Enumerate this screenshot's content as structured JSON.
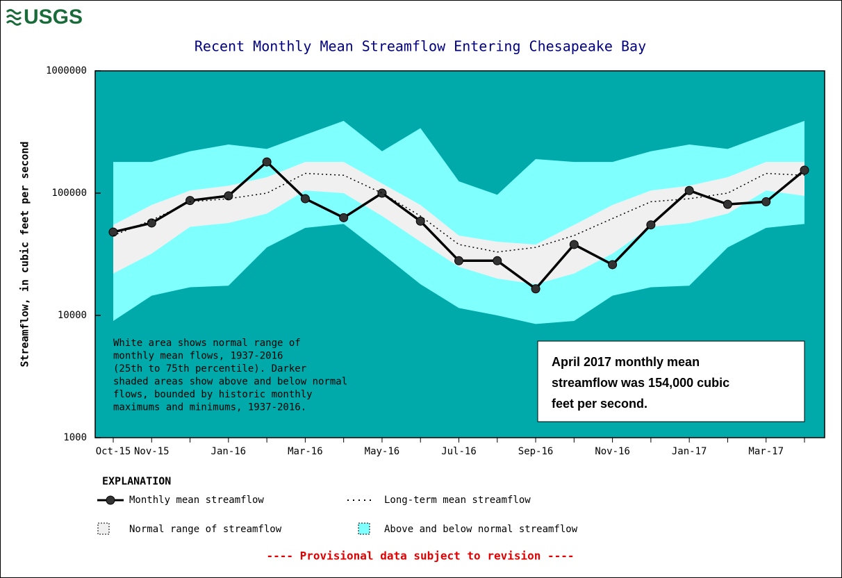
{
  "chart_data": {
    "type": "line",
    "logo": "USGS",
    "title": "Recent Monthly Mean Streamflow Entering Chesapeake Bay",
    "ylabel": "Streamflow, in cubic feet per second",
    "categories": [
      "Oct-15",
      "Nov-15",
      null,
      "Jan-16",
      null,
      "Mar-16",
      null,
      "May-16",
      null,
      "Jul-16",
      null,
      "Sep-16",
      null,
      "Nov-16",
      null,
      "Jan-17",
      null,
      "Mar-17",
      null
    ],
    "ylim": [
      1000,
      1000000
    ],
    "yticks": [
      1000,
      10000,
      100000,
      1000000
    ],
    "log_scale": true,
    "background": "#00aaaa",
    "series": [
      {
        "name": "Monthly mean streamflow",
        "color": "#000000",
        "style": "solid-markers",
        "values": [
          48000,
          57000,
          87000,
          95000,
          180000,
          90000,
          63000,
          100000,
          59000,
          28000,
          28000,
          16500,
          38000,
          26000,
          55000,
          105000,
          81000,
          85000,
          154000
        ]
      },
      {
        "name": "Long-term mean streamflow",
        "color": "#000000",
        "style": "dotted",
        "values": [
          45000,
          60000,
          85000,
          90000,
          100000,
          145000,
          140000,
          100000,
          65000,
          38000,
          33000,
          36000,
          45000,
          62000,
          85000,
          90000,
          100000,
          145000,
          140000
        ]
      }
    ],
    "bands": [
      {
        "name": "Above and below normal streamflow",
        "color": "#80ffff",
        "upper": [
          180000,
          180000,
          220000,
          250000,
          230000,
          300000,
          390000,
          220000,
          340000,
          125000,
          97000,
          190000,
          180000,
          180000,
          220000,
          250000,
          230000,
          300000,
          390000
        ],
        "lower": [
          9000,
          14500,
          17000,
          17500,
          36000,
          52000,
          56000,
          32000,
          18000,
          11500,
          10000,
          8500,
          9000,
          14500,
          17000,
          17500,
          36000,
          52000,
          56000
        ]
      },
      {
        "name": "Normal range of streamflow",
        "color": "#f0f0f0",
        "upper": [
          55000,
          80000,
          105000,
          115000,
          135000,
          180000,
          180000,
          120000,
          80000,
          45000,
          40000,
          38000,
          55000,
          80000,
          105000,
          115000,
          135000,
          180000,
          180000
        ],
        "lower": [
          22000,
          32000,
          53000,
          57000,
          68000,
          105000,
          100000,
          65000,
          40000,
          25000,
          20000,
          18000,
          22000,
          32000,
          53000,
          57000,
          68000,
          105000,
          95000
        ]
      }
    ],
    "note": [
      "White area shows normal range of",
      "monthly mean flows, 1937-2016",
      "(25th to 75th percentile).  Darker",
      "shaded areas show above and below normal",
      "flows, bounded by historic monthly",
      "maximums and minimums, 1937-2016."
    ],
    "callout": [
      "April 2017 monthly mean",
      "streamflow was 154,000 cubic",
      "feet per second."
    ],
    "legend_title": "EXPLANATION",
    "footer": "---- Provisional data subject to revision ----"
  }
}
